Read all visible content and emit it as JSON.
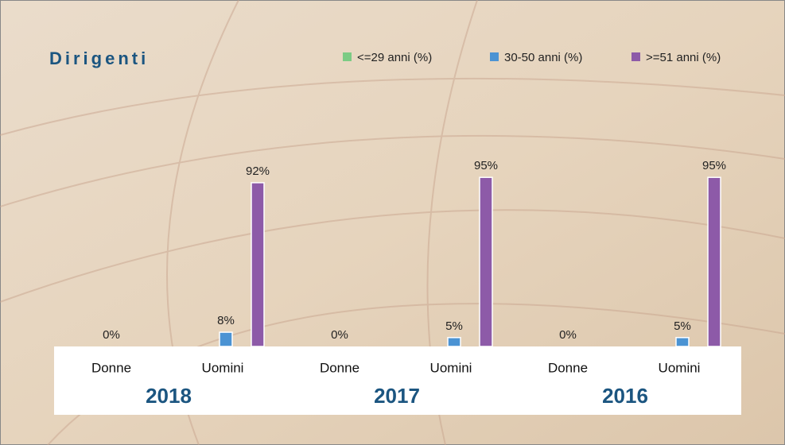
{
  "chart_data": {
    "type": "bar",
    "title": "Dirigenti",
    "groups": [
      "2018",
      "2017",
      "2016"
    ],
    "categories": [
      "Donne",
      "Uomini",
      "Donne",
      "Uomini",
      "Donne",
      "Uomini"
    ],
    "series": [
      {
        "name": "<=29 anni (%)",
        "color": "#7ccb84",
        "values": [
          0,
          0,
          0,
          0,
          0,
          0
        ],
        "value_labels": [
          null,
          null,
          null,
          null,
          null,
          null
        ]
      },
      {
        "name": "30-50 anni (%)",
        "color": "#4b93d3",
        "values": [
          0,
          8,
          0,
          5,
          0,
          5
        ],
        "value_labels": [
          "0%",
          "8%",
          "0%",
          "5%",
          "0%",
          "5%"
        ]
      },
      {
        "name": ">=51 anni (%)",
        "color": "#8d5aa8",
        "values": [
          0,
          92,
          0,
          95,
          0,
          95
        ],
        "value_labels": [
          null,
          "92%",
          null,
          "95%",
          null,
          "95%"
        ]
      }
    ],
    "ylim": [
      0,
      100
    ]
  }
}
